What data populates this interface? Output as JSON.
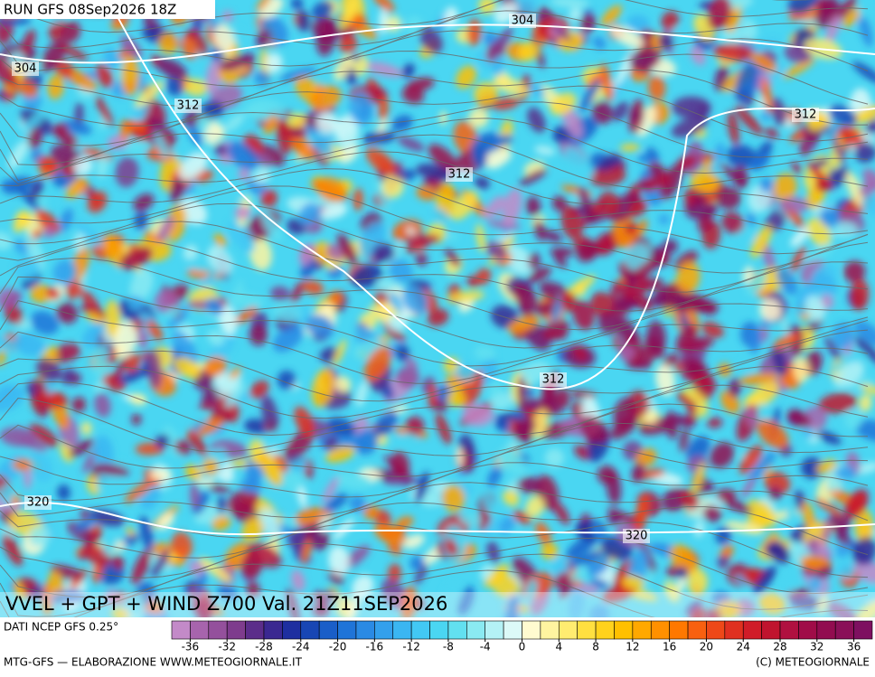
{
  "header": {
    "run": "RUN GFS 08Sep2026 18Z"
  },
  "map": {
    "contour_labels": [
      "304",
      "304",
      "312",
      "312",
      "312",
      "312",
      "320",
      "320"
    ]
  },
  "footer": {
    "title": "VVEL + GPT + WIND Z700 Val. 21Z11SEP2026",
    "source": "DATI NCEP GFS 0.25°",
    "credit_left": "MTG-GFS — ELABORAZIONE WWW.METEOGIORNALE.IT",
    "credit_right": "(C) METEOGIORNALE"
  },
  "colorbar": {
    "range": [
      -38,
      38
    ],
    "ticks": [
      -36,
      -32,
      -28,
      -24,
      -20,
      -16,
      -12,
      -8,
      -4,
      0,
      4,
      8,
      12,
      16,
      20,
      24,
      28,
      32,
      36
    ],
    "colors": [
      "#c38ac8",
      "#a764ad",
      "#94509c",
      "#7e3c8d",
      "#5b2d8a",
      "#3a2891",
      "#1e2fa0",
      "#1846b4",
      "#1a5ec8",
      "#1f74d8",
      "#2a8ae4",
      "#33a0ec",
      "#3ab6f2",
      "#42c8f4",
      "#4ad6f2",
      "#62e0f0",
      "#8aeaf2",
      "#b4f2f6",
      "#dcfaf8",
      "#fffbd0",
      "#fff4a0",
      "#ffec70",
      "#ffe040",
      "#ffd21c",
      "#ffc000",
      "#ffa800",
      "#ff9000",
      "#ff7800",
      "#f86010",
      "#ee4818",
      "#e03020",
      "#d01c28",
      "#c0142e",
      "#b01040",
      "#a00c48",
      "#920c50",
      "#8a1058",
      "#7e1060"
    ]
  }
}
